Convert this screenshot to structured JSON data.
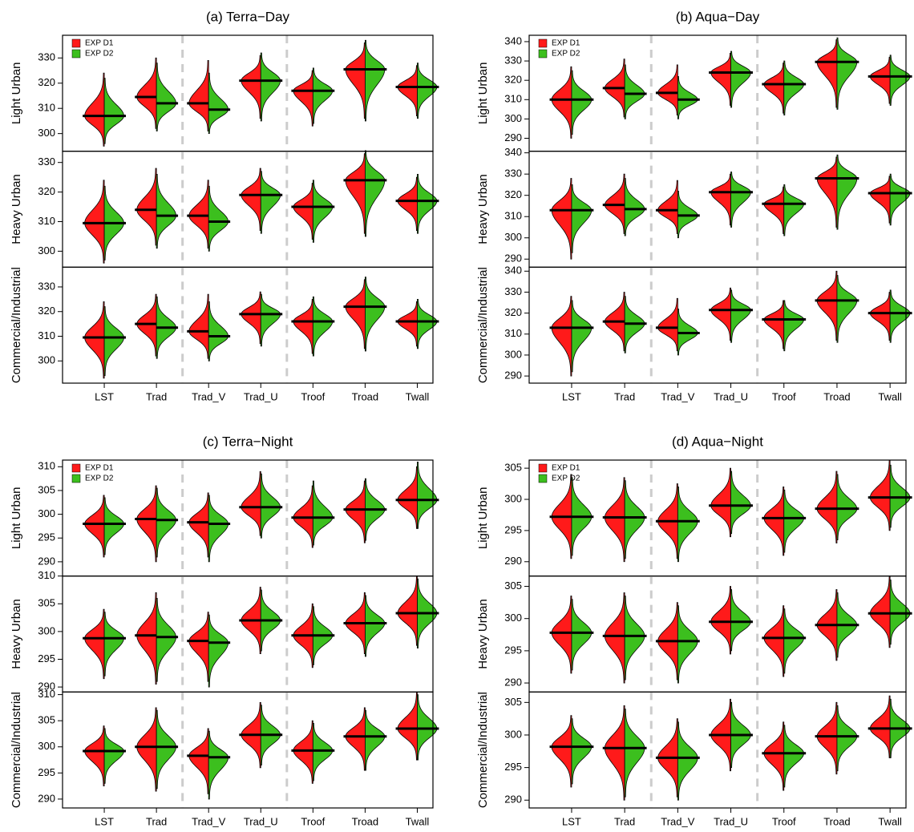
{
  "chart_data": [
    {
      "type": "violin",
      "title": "(a) Terra−Day",
      "legend": "top-left",
      "categories": [
        "LST",
        "Trad",
        "Trad_V",
        "Trad_U",
        "Troof",
        "Troad",
        "Twall"
      ],
      "rows": [
        {
          "ylabel": "Light Urban",
          "ylim": [
            293,
            339
          ],
          "yticks": [
            300,
            310,
            320,
            330
          ]
        },
        {
          "ylabel": "Heavy Urban",
          "ylim": [
            294.6,
            333.8
          ],
          "yticks": [
            300,
            310,
            320,
            330
          ]
        },
        {
          "ylabel": "Commercial/Industrial",
          "ylim": [
            291,
            338
          ],
          "yticks": [
            300,
            310,
            320,
            330
          ]
        }
      ],
      "series": [
        {
          "name": "EXP D1",
          "color": "#ff1a1a",
          "values": [
            [
              307,
              314.5,
              312,
              321,
              317,
              325.5,
              318.5
            ],
            [
              309.5,
              314,
              312,
              319,
              315,
              324,
              317
            ],
            [
              309.5,
              315,
              312,
              319,
              316,
              322,
              316
            ]
          ],
          "min": [
            [
              295,
              302,
              301,
              306,
              303,
              306,
              307
            ],
            [
              296,
              302,
              301,
              307,
              304,
              306,
              307
            ],
            [
              293,
              302,
              301,
              307,
              303,
              305,
              306
            ]
          ],
          "max": [
            [
              324,
              330,
              329,
              331,
              325,
              336,
              327
            ],
            [
              324,
              328,
              324,
              328,
              323,
              333,
              325
            ],
            [
              324,
              327,
              327,
              328,
              325,
              333,
              324
            ]
          ]
        },
        {
          "name": "EXP D2",
          "color": "#3cbf1e",
          "values": [
            [
              307,
              312,
              309.5,
              321,
              317,
              325.5,
              318.5
            ],
            [
              309.5,
              312,
              310,
              319,
              315,
              324,
              317
            ],
            [
              309.5,
              313.5,
              310,
              319,
              316,
              322,
              316
            ]
          ],
          "min": [
            [
              296,
              301,
              300,
              305,
              304,
              305,
              306
            ],
            [
              297,
              301,
              300,
              306,
              303,
              305,
              306
            ],
            [
              294,
              301,
              300,
              306,
              302,
              304,
              305
            ]
          ],
          "max": [
            [
              322,
              328,
              324,
              332,
              326,
              337,
              328
            ],
            [
              322,
              326,
              322,
              327,
              324,
              334,
              326
            ],
            [
              322,
              326,
              324,
              327,
              326,
              334,
              325
            ]
          ]
        }
      ]
    },
    {
      "type": "violin",
      "title": "(b) Aqua−Day",
      "legend": "top-left",
      "categories": [
        "LST",
        "Trad",
        "Trad_V",
        "Trad_U",
        "Troof",
        "Troad",
        "Twall"
      ],
      "rows": [
        {
          "ylabel": "Light Urban",
          "ylim": [
            283.3,
            343.3
          ],
          "yticks": [
            290,
            300,
            310,
            320,
            330,
            340
          ]
        },
        {
          "ylabel": "Heavy Urban",
          "ylim": [
            286.2,
            340.75
          ],
          "yticks": [
            290,
            300,
            310,
            320,
            330,
            340
          ]
        },
        {
          "ylabel": "Commercial/Industrial",
          "ylim": [
            286.6,
            341.9
          ],
          "yticks": [
            290,
            300,
            310,
            320,
            330,
            340
          ]
        }
      ],
      "series": [
        {
          "name": "EXP D1",
          "color": "#ff1a1a",
          "values": [
            [
              310,
              316,
              313.5,
              324,
              318,
              329.5,
              322
            ],
            [
              313,
              315.5,
              313,
              321.5,
              316,
              328,
              321
            ],
            [
              313,
              316,
              313,
              321.5,
              317,
              326,
              320
            ]
          ],
          "min": [
            [
              290,
              301,
              302,
              307,
              303,
              306,
              308
            ],
            [
              290,
              302,
              302,
              306,
              302,
              305,
              307
            ],
            [
              290,
              302,
              302,
              307,
              303,
              307,
              307
            ]
          ],
          "max": [
            [
              327,
              331,
              328,
              334,
              329,
              341,
              332
            ],
            [
              328,
              330,
              327,
              330,
              324,
              338,
              329
            ],
            [
              328,
              330,
              327,
              332,
              326,
              340,
              330
            ]
          ]
        },
        {
          "name": "EXP D2",
          "color": "#3cbf1e",
          "values": [
            [
              310,
              313,
              310,
              324,
              318,
              329.5,
              322
            ],
            [
              313,
              313.5,
              310.5,
              321.5,
              316,
              328,
              321
            ],
            [
              313,
              315,
              310.5,
              321.5,
              317,
              326,
              320
            ]
          ],
          "min": [
            [
              292,
              300,
              300,
              306,
              302,
              305,
              307
            ],
            [
              293,
              301,
              300,
              305,
              301,
              304,
              306
            ],
            [
              292,
              301,
              300,
              306,
              302,
              306,
              306
            ]
          ],
          "max": [
            [
              325,
              328,
              322,
              335,
              330,
              342,
              333
            ],
            [
              325,
              328,
              322,
              331,
              325,
              339,
              330
            ],
            [
              326,
              328,
              322,
              331,
              326,
              338,
              331
            ]
          ]
        }
      ]
    },
    {
      "type": "violin",
      "title": "(c) Terra−Night",
      "legend": "top-left",
      "categories": [
        "LST",
        "Trad",
        "Trad_V",
        "Trad_U",
        "Troof",
        "Troad",
        "Twall"
      ],
      "rows": [
        {
          "ylabel": "Light Urban",
          "ylim": [
            287,
            311.4
          ],
          "yticks": [
            290,
            295,
            300,
            305,
            310
          ]
        },
        {
          "ylabel": "Heavy Urban",
          "ylim": [
            289.1,
            310
          ],
          "yticks": [
            290,
            295,
            300,
            305,
            310
          ]
        },
        {
          "ylabel": "Commercial/Industrial",
          "ylim": [
            288.3,
            310.5
          ],
          "yticks": [
            290,
            295,
            300,
            305,
            310
          ]
        }
      ],
      "series": [
        {
          "name": "EXP D1",
          "color": "#ff1a1a",
          "values": [
            [
              298,
              299,
              298.3,
              301.5,
              299.3,
              301,
              303
            ],
            [
              298.8,
              299.3,
              298.3,
              302,
              299.3,
              301.5,
              303.3
            ],
            [
              299.2,
              300,
              298.3,
              302.3,
              299.3,
              302,
              303.5
            ]
          ],
          "min": [
            [
              291,
              290,
              291,
              295.5,
              293,
              294,
              297
            ],
            [
              291.5,
              290.5,
              291,
              296,
              293.5,
              296,
              297.5
            ],
            [
              292.5,
              291.5,
              291,
              296,
              293,
              295.5,
              297.5
            ]
          ],
          "max": [
            [
              304,
              306,
              304.5,
              309,
              306,
              307,
              310
            ],
            [
              304,
              307,
              303.5,
              308,
              305,
              307,
              310
            ],
            [
              304,
              307.5,
              303.5,
              308.5,
              305,
              307.5,
              310.5
            ]
          ]
        },
        {
          "name": "EXP D2",
          "color": "#3cbf1e",
          "values": [
            [
              298,
              298.8,
              298,
              301.5,
              299.3,
              301,
              303
            ],
            [
              298.8,
              299,
              298,
              302,
              299.3,
              301.5,
              303.3
            ],
            [
              299.2,
              300,
              298,
              302.3,
              299.3,
              302,
              303.5
            ]
          ],
          "min": [
            [
              291.5,
              291,
              290,
              295,
              293.5,
              294.5,
              297
            ],
            [
              292,
              291,
              290,
              296.5,
              294,
              295.5,
              297
            ],
            [
              293,
              292,
              290,
              296.5,
              293.5,
              295.5,
              297.5
            ]
          ],
          "max": [
            [
              303.5,
              305.5,
              304,
              308.5,
              307,
              307.5,
              311
            ],
            [
              303.5,
              306,
              303,
              307.5,
              304.5,
              306.5,
              309.5
            ],
            [
              303.5,
              307,
              303,
              308,
              304.5,
              307,
              310
            ]
          ]
        }
      ]
    },
    {
      "type": "violin",
      "title": "(d) Aqua−Night",
      "legend": "top-left",
      "categories": [
        "LST",
        "Trad",
        "Trad_V",
        "Trad_U",
        "Troof",
        "Troad",
        "Twall"
      ],
      "rows": [
        {
          "ylabel": "Light Urban",
          "ylim": [
            287.7,
            306.3
          ],
          "yticks": [
            290,
            295,
            300,
            305
          ]
        },
        {
          "ylabel": "Heavy Urban",
          "ylim": [
            288.6,
            306.6
          ],
          "yticks": [
            290,
            295,
            300,
            305
          ]
        },
        {
          "ylabel": "Commercial/Industrial",
          "ylim": [
            288.8,
            306.6
          ],
          "yticks": [
            290,
            295,
            300,
            305
          ]
        }
      ],
      "series": [
        {
          "name": "EXP D1",
          "color": "#ff1a1a",
          "values": [
            [
              297.2,
              297.1,
              296.5,
              299,
              297,
              298.5,
              300.3
            ],
            [
              297.8,
              297.3,
              296.5,
              299.5,
              297,
              299,
              300.8
            ],
            [
              298.2,
              298,
              296.5,
              300,
              297.2,
              299.8,
              301
            ]
          ],
          "min": [
            [
              290.5,
              290,
              290.5,
              294,
              291,
              293,
              295
            ],
            [
              291.5,
              290,
              290.5,
              294.5,
              291,
              293.5,
              295.5
            ],
            [
              292,
              290,
              290.5,
              294.5,
              291.5,
              294,
              296.5
            ]
          ],
          "max": [
            [
              304,
              303.5,
              302.5,
              305,
              302,
              304.5,
              306.3
            ],
            [
              303.5,
              304,
              302.5,
              305,
              302,
              304.5,
              306.5
            ],
            [
              303,
              304.5,
              302.5,
              305.5,
              302,
              305,
              306
            ]
          ]
        },
        {
          "name": "EXP D2",
          "color": "#3cbf1e",
          "values": [
            [
              297.2,
              297.1,
              296.5,
              299,
              297,
              298.5,
              300.3
            ],
            [
              297.8,
              297.3,
              296.5,
              299.5,
              297,
              299,
              300.8
            ],
            [
              298.2,
              298,
              296.5,
              300,
              297.2,
              299.8,
              301
            ]
          ],
          "min": [
            [
              291,
              290.5,
              290,
              294.5,
              291.5,
              293.5,
              295.5
            ],
            [
              292,
              290.5,
              290,
              295,
              291.5,
              294,
              296
            ],
            [
              292.5,
              290.5,
              290,
              295,
              292,
              294.5,
              296.5
            ]
          ],
          "max": [
            [
              303.5,
              303,
              302,
              304.5,
              301.5,
              304,
              305.5
            ],
            [
              303,
              303.5,
              302,
              304.5,
              301.5,
              304,
              306
            ],
            [
              302.5,
              304,
              302,
              305,
              301.5,
              304.5,
              305.5
            ]
          ]
        }
      ]
    }
  ]
}
